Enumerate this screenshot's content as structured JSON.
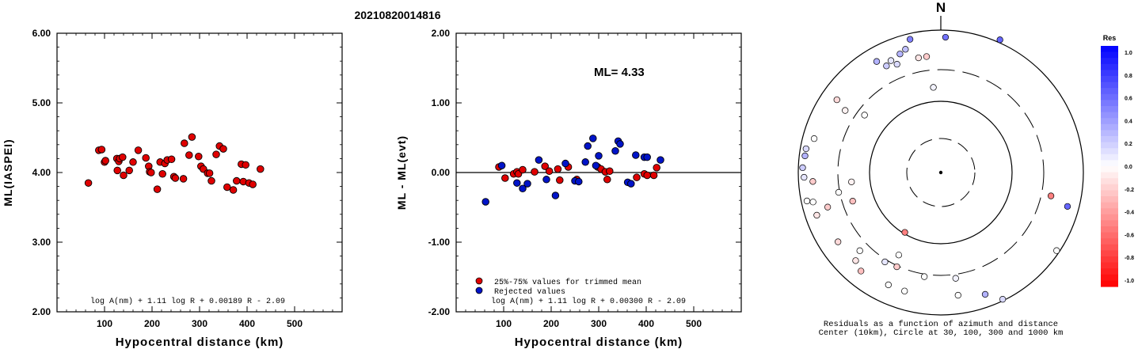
{
  "title": "20210820014816",
  "chart_data": [
    {
      "type": "scatter",
      "id": "left",
      "xlabel": "Hypocentral distance (km)",
      "ylabel": "ML(IASPEI)",
      "xlim": [
        0,
        600
      ],
      "ylim": [
        2.0,
        6.0
      ],
      "xticks": [
        "100",
        "200",
        "300",
        "400",
        "500"
      ],
      "yticks": [
        "2.00",
        "3.00",
        "4.00",
        "5.00",
        "6.00"
      ],
      "formula": "log A(nm) + 1.11 log R + 0.00189 R - 2.09",
      "points": [
        [
          66,
          3.85
        ],
        [
          88,
          4.32
        ],
        [
          94,
          4.33
        ],
        [
          100,
          4.15
        ],
        [
          102,
          4.17
        ],
        [
          126,
          4.2
        ],
        [
          127,
          4.03
        ],
        [
          130,
          4.16
        ],
        [
          132,
          4.2
        ],
        [
          138,
          4.22
        ],
        [
          140,
          3.96
        ],
        [
          152,
          4.03
        ],
        [
          160,
          4.15
        ],
        [
          171,
          4.32
        ],
        [
          187,
          4.21
        ],
        [
          193,
          4.09
        ],
        [
          195,
          4.01
        ],
        [
          198,
          4.0
        ],
        [
          211,
          3.76
        ],
        [
          217,
          4.15
        ],
        [
          222,
          3.98
        ],
        [
          227,
          4.13
        ],
        [
          232,
          4.18
        ],
        [
          241,
          4.19
        ],
        [
          246,
          3.94
        ],
        [
          249,
          3.92
        ],
        [
          266,
          3.91
        ],
        [
          268,
          4.42
        ],
        [
          278,
          4.25
        ],
        [
          284,
          4.51
        ],
        [
          298,
          4.23
        ],
        [
          303,
          4.09
        ],
        [
          308,
          4.05
        ],
        [
          317,
          3.99
        ],
        [
          321,
          3.99
        ],
        [
          325,
          3.88
        ],
        [
          335,
          4.26
        ],
        [
          342,
          4.38
        ],
        [
          350,
          4.34
        ],
        [
          358,
          3.79
        ],
        [
          371,
          3.75
        ],
        [
          378,
          3.88
        ],
        [
          388,
          4.12
        ],
        [
          392,
          3.87
        ],
        [
          397,
          4.11
        ],
        [
          404,
          3.85
        ],
        [
          412,
          3.83
        ],
        [
          428,
          4.05
        ]
      ]
    },
    {
      "type": "scatter",
      "id": "mid",
      "xlabel": "Hypocentral distance (km)",
      "ylabel": "ML - ML(evt)",
      "xlim": [
        0,
        600
      ],
      "ylim": [
        -2.0,
        2.0
      ],
      "xticks": [
        "100",
        "200",
        "300",
        "400",
        "500"
      ],
      "yticks": [
        "-2.00",
        "-1.00",
        "0.00",
        "1.00",
        "2.00"
      ],
      "annotation": "ML= 4.33",
      "legend": [
        "25%-75% values for trimmed mean",
        "Rejected values"
      ],
      "formula": "log A(nm) + 1.11 log R + 0.00300 R - 2.09",
      "red_points": [
        [
          90,
          0.08
        ],
        [
          103,
          -0.08
        ],
        [
          121,
          -0.02
        ],
        [
          128,
          0.01
        ],
        [
          131,
          -0.02
        ],
        [
          140,
          0.04
        ],
        [
          165,
          0.01
        ],
        [
          187,
          0.09
        ],
        [
          196,
          0.02
        ],
        [
          214,
          0.05
        ],
        [
          218,
          -0.11
        ],
        [
          236,
          0.08
        ],
        [
          254,
          -0.1
        ],
        [
          298,
          0.08
        ],
        [
          305,
          0.05
        ],
        [
          314,
          0.01
        ],
        [
          318,
          -0.1
        ],
        [
          323,
          0.02
        ],
        [
          380,
          -0.07
        ],
        [
          396,
          -0.02
        ],
        [
          402,
          -0.04
        ],
        [
          416,
          -0.04
        ],
        [
          422,
          0.07
        ]
      ],
      "blue_points": [
        [
          62,
          -0.42
        ],
        [
          96,
          0.1
        ],
        [
          128,
          -0.15
        ],
        [
          140,
          -0.23
        ],
        [
          150,
          -0.16
        ],
        [
          174,
          0.18
        ],
        [
          190,
          -0.1
        ],
        [
          209,
          -0.33
        ],
        [
          230,
          0.13
        ],
        [
          250,
          -0.12
        ],
        [
          258,
          -0.13
        ],
        [
          272,
          0.15
        ],
        [
          277,
          0.38
        ],
        [
          288,
          0.49
        ],
        [
          294,
          0.1
        ],
        [
          300,
          0.24
        ],
        [
          335,
          0.31
        ],
        [
          341,
          0.45
        ],
        [
          345,
          0.41
        ],
        [
          361,
          -0.14
        ],
        [
          368,
          -0.16
        ],
        [
          378,
          0.25
        ],
        [
          396,
          0.22
        ],
        [
          402,
          0.22
        ],
        [
          430,
          0.18
        ]
      ]
    },
    {
      "type": "polar-scatter",
      "id": "polar",
      "north_label": "N",
      "caption_line1": "Residuals as a function of azimuth and distance",
      "caption_line2": "Center (10km), Circle at 30, 100, 300 and 1000 km",
      "points": [
        {
          "azimuth": 330,
          "radius": 0.9,
          "res": 0.3
        },
        {
          "azimuth": 333,
          "radius": 0.84,
          "res": 0.2
        },
        {
          "azimuth": 336,
          "radius": 0.86,
          "res": 0.1
        },
        {
          "azimuth": 338,
          "radius": 0.82,
          "res": 0.15
        },
        {
          "azimuth": 341,
          "radius": 0.88,
          "res": 0.3
        },
        {
          "azimuth": 344,
          "radius": 0.9,
          "res": 0.25
        },
        {
          "azimuth": 347,
          "radius": 0.96,
          "res": 0.5
        },
        {
          "azimuth": 349,
          "radius": 0.82,
          "res": -0.1
        },
        {
          "azimuth": 353,
          "radius": 0.82,
          "res": -0.2
        },
        {
          "azimuth": 355,
          "radius": 0.6,
          "res": 0.05
        },
        {
          "azimuth": 2,
          "radius": 0.95,
          "res": 0.55
        },
        {
          "azimuth": 24,
          "radius": 1.02,
          "res": 0.6
        },
        {
          "azimuth": 305,
          "radius": 0.89,
          "res": -0.15
        },
        {
          "azimuth": 303,
          "radius": 0.8,
          "res": -0.05
        },
        {
          "azimuth": 307,
          "radius": 0.67,
          "res": 0.0
        },
        {
          "azimuth": 285,
          "radius": 0.92,
          "res": 0.0
        },
        {
          "azimuth": 280,
          "radius": 0.96,
          "res": 0.15
        },
        {
          "azimuth": 277,
          "radius": 0.96,
          "res": 0.3
        },
        {
          "azimuth": 272,
          "radius": 0.97,
          "res": 0.2
        },
        {
          "azimuth": 268,
          "radius": 0.96,
          "res": 0.1
        },
        {
          "azimuth": 266,
          "radius": 0.9,
          "res": -0.2
        },
        {
          "azimuth": 258,
          "radius": 0.96,
          "res": 0.0
        },
        {
          "azimuth": 257,
          "radius": 0.92,
          "res": 0.0
        },
        {
          "azimuth": 251,
          "radius": 0.92,
          "res": -0.1
        },
        {
          "azimuth": 253,
          "radius": 0.83,
          "res": -0.2
        },
        {
          "azimuth": 259,
          "radius": 0.73,
          "res": 0.0
        },
        {
          "azimuth": 264,
          "radius": 0.63,
          "res": -0.05
        },
        {
          "azimuth": 252,
          "radius": 0.65,
          "res": -0.25
        },
        {
          "azimuth": 236,
          "radius": 0.87,
          "res": -0.15
        },
        {
          "azimuth": 226,
          "radius": 0.79,
          "res": 0.0
        },
        {
          "azimuth": 224,
          "radius": 0.86,
          "res": -0.1
        },
        {
          "azimuth": 219,
          "radius": 0.89,
          "res": -0.25
        },
        {
          "azimuth": 212,
          "radius": 0.74,
          "res": 0.1
        },
        {
          "azimuth": 207,
          "radius": 0.65,
          "res": 0.0
        },
        {
          "azimuth": 205,
          "radius": 0.87,
          "res": 0.0
        },
        {
          "azimuth": 205,
          "radius": 0.73,
          "res": -0.2
        },
        {
          "azimuth": 197,
          "radius": 0.87,
          "res": 0.0
        },
        {
          "azimuth": 189,
          "radius": 0.74,
          "res": 0.0
        },
        {
          "azimuth": 172,
          "radius": 0.75,
          "res": 0.05
        },
        {
          "azimuth": 172,
          "radius": 0.87,
          "res": 0.0
        },
        {
          "azimuth": 160,
          "radius": 0.91,
          "res": 0.3
        },
        {
          "azimuth": 154,
          "radius": 0.99,
          "res": 0.15
        },
        {
          "azimuth": 124,
          "radius": 0.98,
          "res": 0.0
        },
        {
          "azimuth": 105,
          "radius": 0.92,
          "res": 0.6
        },
        {
          "azimuth": 102,
          "radius": 0.79,
          "res": -0.5
        },
        {
          "azimuth": 211,
          "radius": 0.49,
          "res": -0.5
        }
      ]
    },
    {
      "type": "colorbar",
      "id": "colorbar",
      "title": "Res",
      "ticks": [
        "1.0",
        "0.8",
        "0.6",
        "0.4",
        "0.2",
        "0.0",
        "-0.2",
        "-0.4",
        "-0.6",
        "-0.8",
        "-1.0"
      ]
    }
  ]
}
